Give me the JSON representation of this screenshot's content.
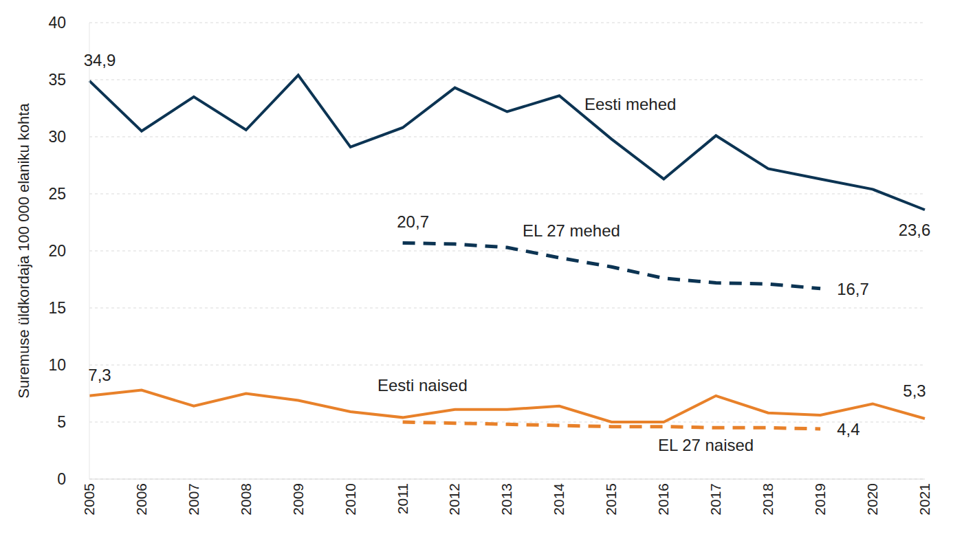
{
  "chart_data": {
    "type": "line",
    "y_label": "Suremuse üldkordaja 100 000 elaniku kohta",
    "categories": [
      "2005",
      "2006",
      "2007",
      "2008",
      "2009",
      "2010",
      "2011",
      "2012",
      "2013",
      "2014",
      "2015",
      "2016",
      "2017",
      "2018",
      "2019",
      "2020",
      "2021"
    ],
    "ylim": [
      0,
      40
    ],
    "yticks": [
      0,
      5,
      10,
      15,
      20,
      25,
      30,
      35,
      40
    ],
    "grid": true,
    "series": [
      {
        "name": "Eesti mehed",
        "color": "#0c3453",
        "line_style": "solid",
        "values": [
          34.9,
          30.5,
          33.5,
          30.6,
          35.4,
          29.1,
          30.8,
          34.3,
          32.2,
          33.6,
          29.8,
          26.3,
          30.1,
          27.2,
          26.3,
          25.4,
          23.6
        ],
        "value_labels": [
          "34,9",
          null,
          null,
          null,
          null,
          null,
          null,
          null,
          null,
          null,
          null,
          null,
          null,
          null,
          null,
          null,
          "23,6"
        ]
      },
      {
        "name": "EL 27 mehed",
        "color": "#0c3453",
        "line_style": "dashed",
        "values": [
          null,
          null,
          null,
          null,
          null,
          null,
          20.7,
          20.6,
          20.3,
          19.4,
          18.6,
          17.6,
          17.2,
          17.1,
          16.7,
          null,
          null
        ],
        "value_labels": [
          null,
          null,
          null,
          null,
          null,
          null,
          "20,7",
          null,
          null,
          null,
          null,
          null,
          null,
          null,
          "16,7",
          null,
          null
        ]
      },
      {
        "name": "Eesti naised",
        "color": "#e8812a",
        "line_style": "solid",
        "values": [
          7.3,
          7.8,
          6.4,
          7.5,
          6.9,
          5.9,
          5.4,
          6.1,
          6.1,
          6.4,
          5.0,
          5.0,
          7.3,
          5.8,
          5.6,
          6.6,
          5.3
        ],
        "value_labels": [
          "7,3",
          null,
          null,
          null,
          null,
          null,
          null,
          null,
          null,
          null,
          null,
          null,
          null,
          null,
          null,
          null,
          "5,3"
        ]
      },
      {
        "name": "EL 27 naised",
        "color": "#e8812a",
        "line_style": "dashed",
        "values": [
          null,
          null,
          null,
          null,
          null,
          null,
          5.0,
          4.9,
          4.8,
          4.7,
          4.6,
          4.6,
          4.5,
          4.5,
          4.4,
          null,
          null
        ],
        "value_labels": [
          null,
          null,
          null,
          null,
          null,
          null,
          null,
          null,
          null,
          null,
          null,
          null,
          null,
          null,
          "4,4",
          null,
          null
        ]
      }
    ]
  }
}
